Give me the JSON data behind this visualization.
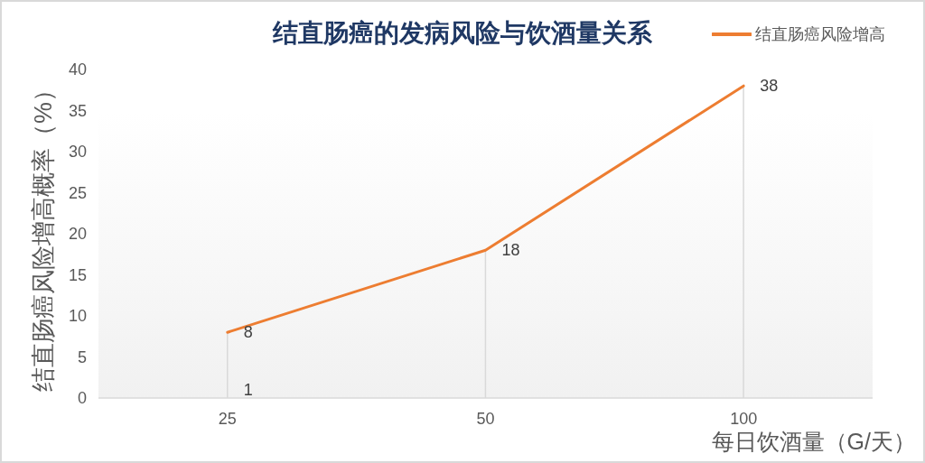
{
  "chart_data": {
    "type": "line",
    "title": "结直肠癌的发病风险与饮酒量关系",
    "xlabel": "每日饮酒量（G/天）",
    "ylabel": "结直肠癌风险增高概率（%）",
    "categories": [
      "25",
      "50",
      "100"
    ],
    "series": [
      {
        "name": "结直肠癌风险增高",
        "color": "#ed7d31",
        "values": [
          8,
          18,
          38
        ],
        "value_labels": [
          "8",
          "18",
          "38"
        ]
      },
      {
        "type": "bar",
        "color": "#d9d9d9",
        "values": [
          8,
          18,
          38
        ]
      }
    ],
    "ylim": [
      0,
      40
    ],
    "yticks": [
      0,
      5,
      10,
      15,
      20,
      25,
      30,
      35,
      40
    ],
    "legend": "top right",
    "annotations": [
      {
        "text": "1",
        "x": "25",
        "y": 1
      }
    ]
  }
}
